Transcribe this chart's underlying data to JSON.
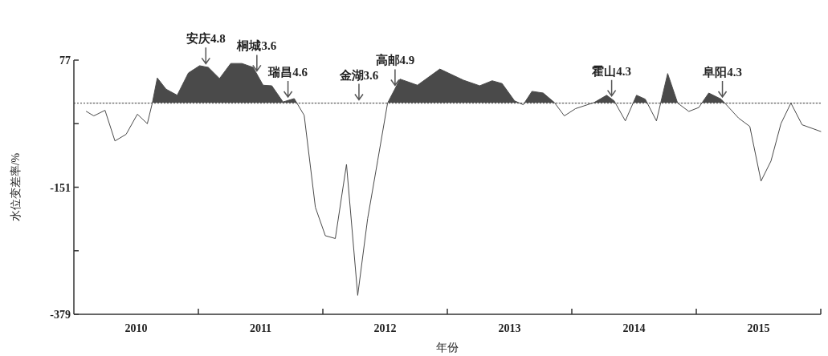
{
  "chart_data": {
    "type": "area",
    "xlabel": "年份",
    "ylabel": "水位变差率/%",
    "xlim": [
      2010,
      2016
    ],
    "ylim": [
      -379,
      77
    ],
    "xticks": [
      {
        "value": 2010.5,
        "label": "2010"
      },
      {
        "value": 2011,
        "label": null
      },
      {
        "value": 2011.5,
        "label": "2011"
      },
      {
        "value": 2012,
        "label": null
      },
      {
        "value": 2012.5,
        "label": "2012"
      },
      {
        "value": 2013,
        "label": null
      },
      {
        "value": 2013.5,
        "label": "2013"
      },
      {
        "value": 2014,
        "label": null
      },
      {
        "value": 2014.5,
        "label": "2014"
      },
      {
        "value": 2015,
        "label": null
      },
      {
        "value": 2015.5,
        "label": "2015"
      },
      {
        "value": 2016,
        "label": null
      }
    ],
    "yticks": [
      77,
      {
        "value": -37,
        "label": null
      },
      -151,
      {
        "value": -265,
        "label": null
      },
      -379
    ],
    "grid": false,
    "marker": "none",
    "line_style": "solid",
    "ref_lines": [
      {
        "axis": "y",
        "value": 0,
        "label": null,
        "color": "#666666",
        "line_style": "dotted"
      }
    ],
    "annotations": [
      {
        "text": "安庆4.8",
        "x": 2011.06,
        "y": 65
      },
      {
        "text": "桐城3.6",
        "x": 2011.47,
        "y": 52
      },
      {
        "text": "瑞昌4.6",
        "x": 2011.72,
        "y": 5
      },
      {
        "text": "金湖3.6",
        "x": 2012.29,
        "y": 0
      },
      {
        "text": "高邮4.9",
        "x": 2012.58,
        "y": 26
      },
      {
        "text": "霍山4.3",
        "x": 2014.32,
        "y": 7
      },
      {
        "text": "阜阳4.3",
        "x": 2015.21,
        "y": 5
      }
    ],
    "series": [
      {
        "color": "#4a4a4a",
        "x": [
          2010.1,
          2010.16,
          2010.25,
          2010.33,
          2010.42,
          2010.51,
          2010.59,
          2010.63,
          2010.67,
          2010.74,
          2010.83,
          2010.92,
          2011.01,
          2011.08,
          2011.17,
          2011.26,
          2011.35,
          2011.44,
          2011.52,
          2011.59,
          2011.68,
          2011.77,
          2011.85,
          2011.94,
          2012.02,
          2012.1,
          2012.19,
          2012.28,
          2012.36,
          2012.44,
          2012.52,
          2012.62,
          2012.76,
          2012.94,
          2013.13,
          2013.26,
          2013.36,
          2013.44,
          2013.54,
          2013.61,
          2013.68,
          2013.77,
          2013.86,
          2013.94,
          2014.03,
          2014.18,
          2014.28,
          2014.34,
          2014.43,
          2014.52,
          2014.59,
          2014.68,
          2014.77,
          2014.85,
          2014.94,
          2015.02,
          2015.1,
          2015.2,
          2015.34,
          2015.43,
          2015.52,
          2015.6,
          2015.68,
          2015.76,
          2015.85,
          2016.0
        ],
        "values": [
          -15,
          -23,
          -13,
          -68,
          -56,
          -20,
          -37,
          0,
          45,
          25,
          14,
          54,
          67,
          64,
          44,
          71,
          71,
          64,
          32,
          31,
          2,
          8,
          -22,
          -187,
          -238,
          -243,
          -110,
          -345,
          -207,
          -104,
          0,
          43,
          32,
          61,
          41,
          31,
          40,
          35,
          4,
          -3,
          21,
          18,
          1,
          -23,
          -10,
          1,
          14,
          4,
          -32,
          14,
          7,
          -32,
          53,
          0,
          -15,
          -8,
          18,
          7,
          -27,
          -42,
          -140,
          -104,
          -37,
          0,
          -39,
          -51
        ]
      }
    ]
  }
}
